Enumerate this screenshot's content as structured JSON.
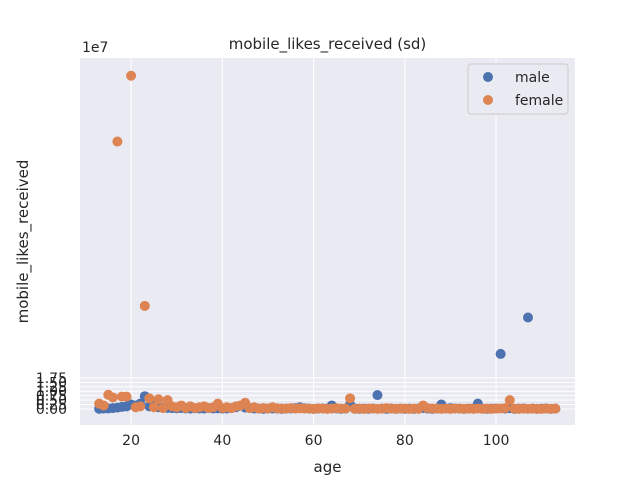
{
  "chart_data": {
    "type": "scatter",
    "title": "mobile_likes_received (sd)",
    "xlabel": "age",
    "ylabel": "mobile_likes_received",
    "y_scale_note": "1e7",
    "xlim": [
      8.8,
      117.3
    ],
    "ylim": [
      -0.9,
      19.75
    ],
    "y_unit": "1e7",
    "x_ticks": [
      20,
      40,
      60,
      80,
      100
    ],
    "y_ticks": [
      0.0,
      0.25,
      0.5,
      0.75,
      1.0,
      1.25,
      1.5,
      1.75
    ],
    "y_tick_labels": [
      "0.00",
      "0.25",
      "0.50",
      "0.75",
      "1.00",
      "1.25",
      "1.50",
      "1.75"
    ],
    "grid": true,
    "legend_position": "top-right",
    "colors": {
      "male": "#4c72b0",
      "female": "#dd8452",
      "background": "#eaeaf2",
      "grid": "#ffffff"
    },
    "series": [
      {
        "name": "male",
        "color": "#4c72b0",
        "x": [
          13,
          14,
          15,
          16,
          17,
          18,
          19,
          20,
          21,
          22,
          23,
          24,
          25,
          26,
          27,
          28,
          29,
          30,
          31,
          32,
          33,
          34,
          35,
          36,
          37,
          38,
          39,
          40,
          41,
          42,
          43,
          44,
          45,
          46,
          47,
          48,
          49,
          50,
          51,
          52,
          53,
          54,
          55,
          56,
          57,
          58,
          59,
          60,
          61,
          62,
          63,
          64,
          65,
          66,
          67,
          68,
          69,
          70,
          71,
          72,
          73,
          74,
          75,
          76,
          77,
          78,
          79,
          80,
          81,
          82,
          83,
          84,
          85,
          86,
          87,
          88,
          89,
          90,
          91,
          92,
          93,
          94,
          95,
          96,
          97,
          98,
          99,
          100,
          101,
          102,
          103,
          104,
          105,
          106,
          107,
          108,
          109,
          110,
          111,
          112,
          113
        ],
        "y": [
          0.01,
          0.02,
          0.03,
          0.05,
          0.08,
          0.12,
          0.15,
          0.25,
          0.2,
          0.3,
          0.72,
          0.15,
          0.18,
          0.1,
          0.08,
          0.06,
          0.05,
          0.04,
          0.05,
          0.03,
          0.02,
          0.04,
          0.03,
          0.02,
          0.05,
          0.03,
          0.04,
          0.02,
          0.03,
          0.05,
          0.1,
          0.2,
          0.08,
          0.05,
          0.03,
          0.02,
          0.01,
          0.02,
          0.03,
          0.02,
          0.01,
          0.02,
          0.03,
          0.05,
          0.1,
          0.04,
          0.02,
          0.01,
          0.02,
          0.03,
          0.02,
          0.2,
          0.03,
          0.01,
          0.02,
          0.25,
          0.03,
          0.01,
          0.02,
          0.01,
          0.03,
          0.78,
          0.02,
          0.01,
          0.03,
          0.01,
          0.02,
          0.01,
          0.02,
          0.01,
          0.03,
          0.05,
          0.02,
          0.01,
          0.02,
          0.25,
          0.03,
          0.05,
          0.03,
          0.02,
          0.01,
          0.02,
          0.03,
          0.3,
          0.02,
          0.01,
          0.02,
          0.03,
          3.1,
          0.02,
          0.05,
          0.01,
          0.02,
          0.03,
          5.15,
          0.02,
          0.01,
          0.02,
          0.03,
          0.01,
          0.02
        ]
      },
      {
        "name": "female",
        "color": "#dd8452",
        "x": [
          13,
          14,
          15,
          16,
          17,
          18,
          19,
          20,
          21,
          22,
          23,
          24,
          25,
          26,
          27,
          28,
          29,
          30,
          31,
          32,
          33,
          34,
          35,
          36,
          37,
          38,
          39,
          40,
          41,
          42,
          43,
          44,
          45,
          46,
          47,
          48,
          49,
          50,
          51,
          52,
          53,
          54,
          55,
          56,
          57,
          58,
          59,
          60,
          61,
          62,
          63,
          64,
          65,
          66,
          67,
          68,
          69,
          70,
          71,
          72,
          73,
          74,
          75,
          76,
          77,
          78,
          79,
          80,
          81,
          82,
          83,
          84,
          85,
          86,
          87,
          88,
          89,
          90,
          91,
          92,
          93,
          94,
          95,
          96,
          97,
          98,
          99,
          100,
          101,
          102,
          103,
          104,
          105,
          106,
          107,
          108,
          109,
          110,
          111,
          112,
          113
        ],
        "y": [
          0.3,
          0.2,
          0.8,
          0.65,
          15.05,
          0.7,
          0.7,
          18.75,
          0.1,
          0.15,
          5.8,
          0.6,
          0.1,
          0.55,
          0.05,
          0.5,
          0.15,
          0.1,
          0.2,
          0.05,
          0.15,
          0.05,
          0.1,
          0.15,
          0.05,
          0.1,
          0.3,
          0.05,
          0.1,
          0.05,
          0.15,
          0.2,
          0.35,
          0.05,
          0.1,
          0.02,
          0.05,
          0.03,
          0.1,
          0.04,
          0.03,
          0.02,
          0.05,
          0.02,
          0.04,
          0.03,
          0.02,
          0.01,
          0.03,
          0.02,
          0.01,
          0.02,
          0.05,
          0.02,
          0.03,
          0.6,
          0.01,
          0.02,
          0.01,
          0.03,
          0.02,
          0.01,
          0.02,
          0.05,
          0.02,
          0.01,
          0.03,
          0.02,
          0.01,
          0.02,
          0.01,
          0.2,
          0.05,
          0.03,
          0.02,
          0.01,
          0.02,
          0.01,
          0.03,
          0.02,
          0.01,
          0.02,
          0.01,
          0.02,
          0.01,
          0.02,
          0.01,
          0.02,
          0.03,
          0.05,
          0.5,
          0.02,
          0.01,
          0.02,
          0.01,
          0.02,
          0.01,
          0.01,
          0.02,
          0.01,
          0.02
        ]
      }
    ]
  }
}
